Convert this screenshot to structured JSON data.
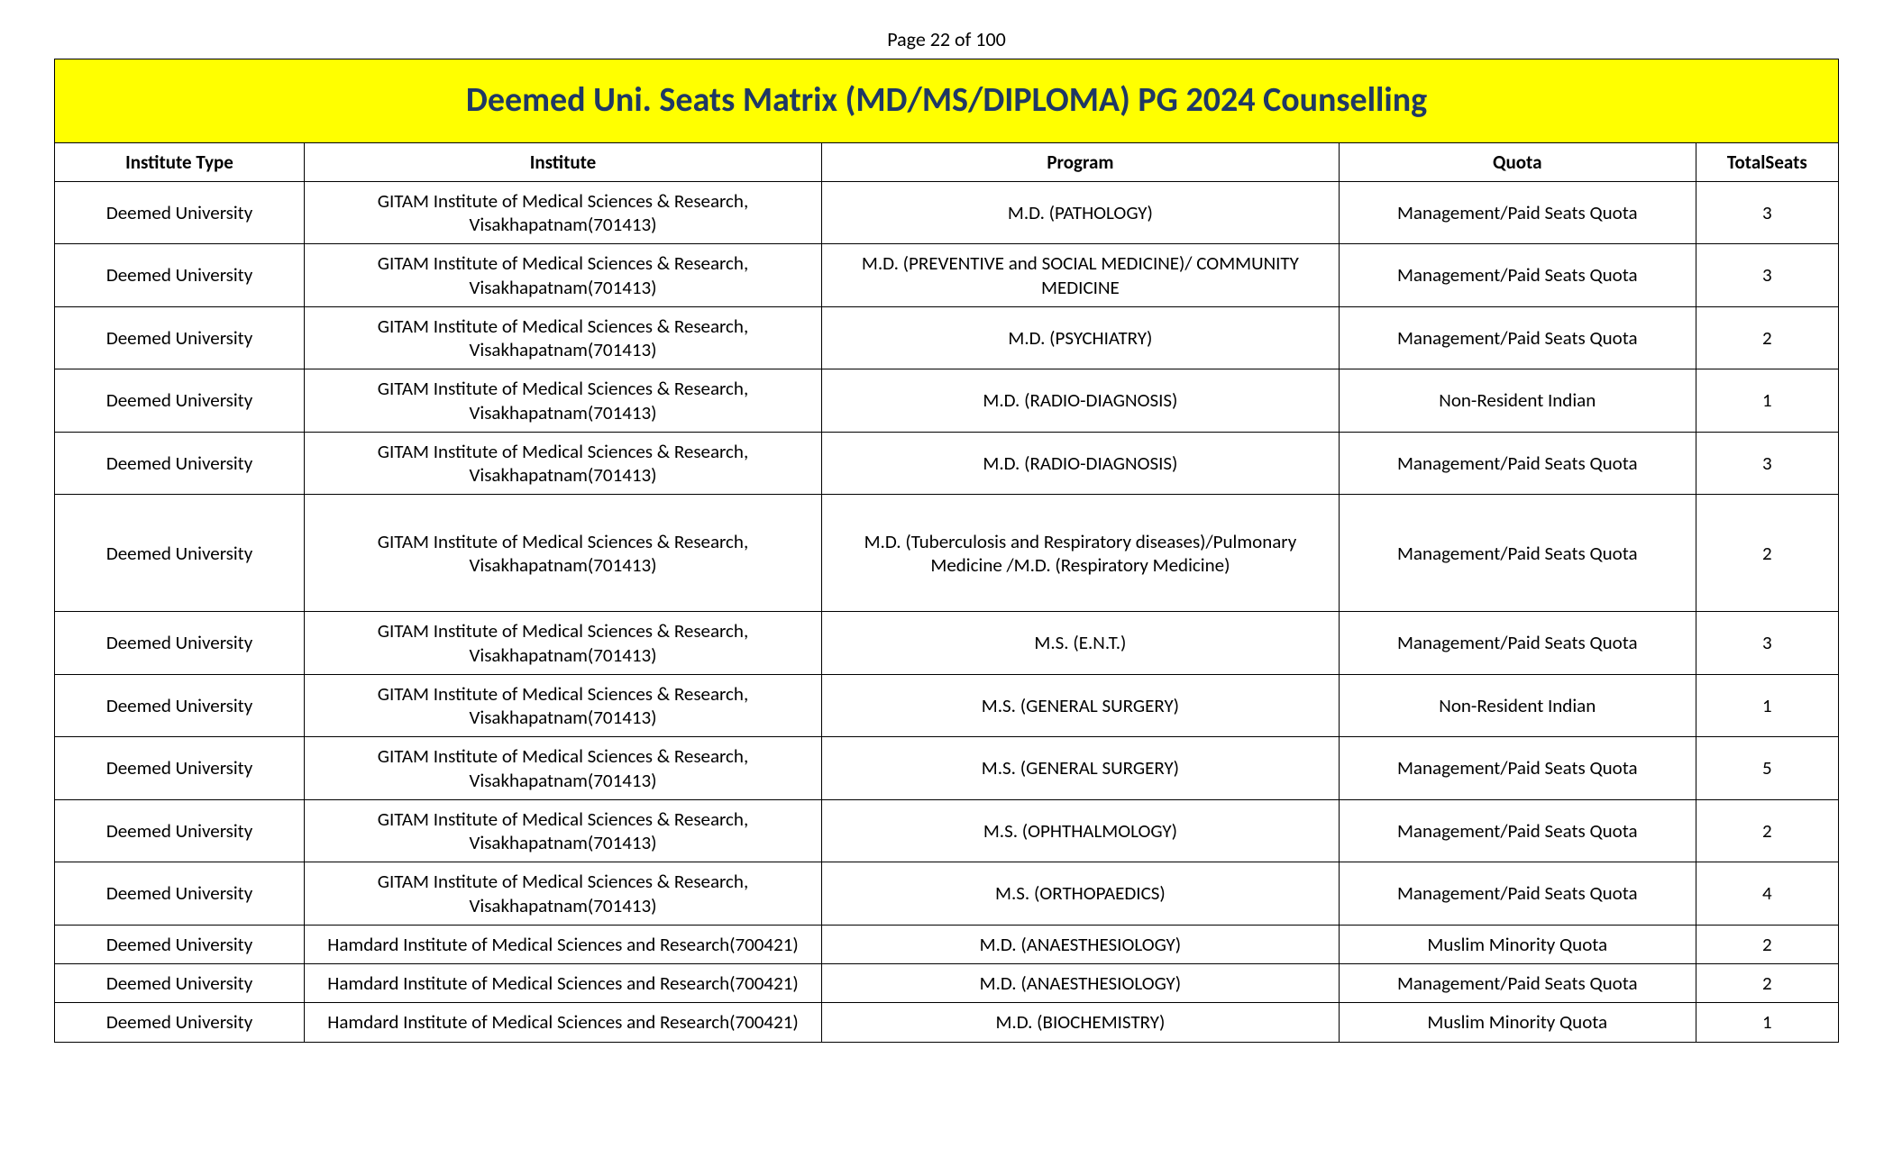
{
  "page_label": "Page 22 of 100",
  "title": "Deemed Uni. Seats Matrix (MD/MS/DIPLOMA) PG 2024 Counselling",
  "title_color": "#1f3864",
  "title_bg": "#ffff00",
  "title_fontsize": 38,
  "border_color": "#000000",
  "body_fontsize": 21,
  "columns": [
    "Institute Type",
    "Institute",
    "Program",
    "Quota",
    "TotalSeats"
  ],
  "column_widths_pct": [
    14,
    29,
    29,
    20,
    8
  ],
  "rows": [
    {
      "type": "Deemed University",
      "institute": "GITAM Institute of Medical Sciences & Research, Visakhapatnam(701413)",
      "program": "M.D. (PATHOLOGY)",
      "quota": "Management/Paid Seats Quota",
      "seats": "3",
      "tall": false
    },
    {
      "type": "Deemed University",
      "institute": "GITAM Institute of Medical Sciences & Research, Visakhapatnam(701413)",
      "program": "M.D. (PREVENTIVE and SOCIAL MEDICINE)/ COMMUNITY MEDICINE",
      "quota": "Management/Paid Seats Quota",
      "seats": "3",
      "tall": false
    },
    {
      "type": "Deemed University",
      "institute": "GITAM Institute of Medical Sciences & Research, Visakhapatnam(701413)",
      "program": "M.D. (PSYCHIATRY)",
      "quota": "Management/Paid Seats Quota",
      "seats": "2",
      "tall": false
    },
    {
      "type": "Deemed University",
      "institute": "GITAM Institute of Medical Sciences & Research, Visakhapatnam(701413)",
      "program": "M.D. (RADIO-DIAGNOSIS)",
      "quota": "Non-Resident Indian",
      "seats": "1",
      "tall": false
    },
    {
      "type": "Deemed University",
      "institute": "GITAM Institute of Medical Sciences & Research, Visakhapatnam(701413)",
      "program": "M.D. (RADIO-DIAGNOSIS)",
      "quota": "Management/Paid Seats Quota",
      "seats": "3",
      "tall": false
    },
    {
      "type": "Deemed University",
      "institute": "GITAM Institute of Medical Sciences & Research, Visakhapatnam(701413)",
      "program": "M.D. (Tuberculosis and Respiratory diseases)/Pulmonary Medicine /M.D. (Respiratory Medicine)",
      "quota": "Management/Paid Seats Quota",
      "seats": "2",
      "tall": true
    },
    {
      "type": "Deemed University",
      "institute": "GITAM Institute of Medical Sciences & Research, Visakhapatnam(701413)",
      "program": "M.S. (E.N.T.)",
      "quota": "Management/Paid Seats Quota",
      "seats": "3",
      "tall": false
    },
    {
      "type": "Deemed University",
      "institute": "GITAM Institute of Medical Sciences & Research, Visakhapatnam(701413)",
      "program": "M.S. (GENERAL SURGERY)",
      "quota": "Non-Resident Indian",
      "seats": "1",
      "tall": false
    },
    {
      "type": "Deemed University",
      "institute": "GITAM Institute of Medical Sciences & Research, Visakhapatnam(701413)",
      "program": "M.S. (GENERAL SURGERY)",
      "quota": "Management/Paid Seats Quota",
      "seats": "5",
      "tall": false
    },
    {
      "type": "Deemed University",
      "institute": "GITAM Institute of Medical Sciences & Research, Visakhapatnam(701413)",
      "program": "M.S. (OPHTHALMOLOGY)",
      "quota": "Management/Paid Seats Quota",
      "seats": "2",
      "tall": false
    },
    {
      "type": "Deemed University",
      "institute": "GITAM Institute of Medical Sciences & Research, Visakhapatnam(701413)",
      "program": "M.S. (ORTHOPAEDICS)",
      "quota": "Management/Paid Seats Quota",
      "seats": "4",
      "tall": false
    },
    {
      "type": "Deemed University",
      "institute": "Hamdard Institute of Medical Sciences and Research(700421)",
      "program": "M.D. (ANAESTHESIOLOGY)",
      "quota": "Muslim Minority Quota",
      "seats": "2",
      "tall": false
    },
    {
      "type": "Deemed University",
      "institute": "Hamdard Institute of Medical Sciences and Research(700421)",
      "program": "M.D. (ANAESTHESIOLOGY)",
      "quota": "Management/Paid Seats Quota",
      "seats": "2",
      "tall": false
    },
    {
      "type": "Deemed University",
      "institute": "Hamdard Institute of Medical Sciences and Research(700421)",
      "program": "M.D. (BIOCHEMISTRY)",
      "quota": "Muslim Minority Quota",
      "seats": "1",
      "tall": false
    }
  ]
}
